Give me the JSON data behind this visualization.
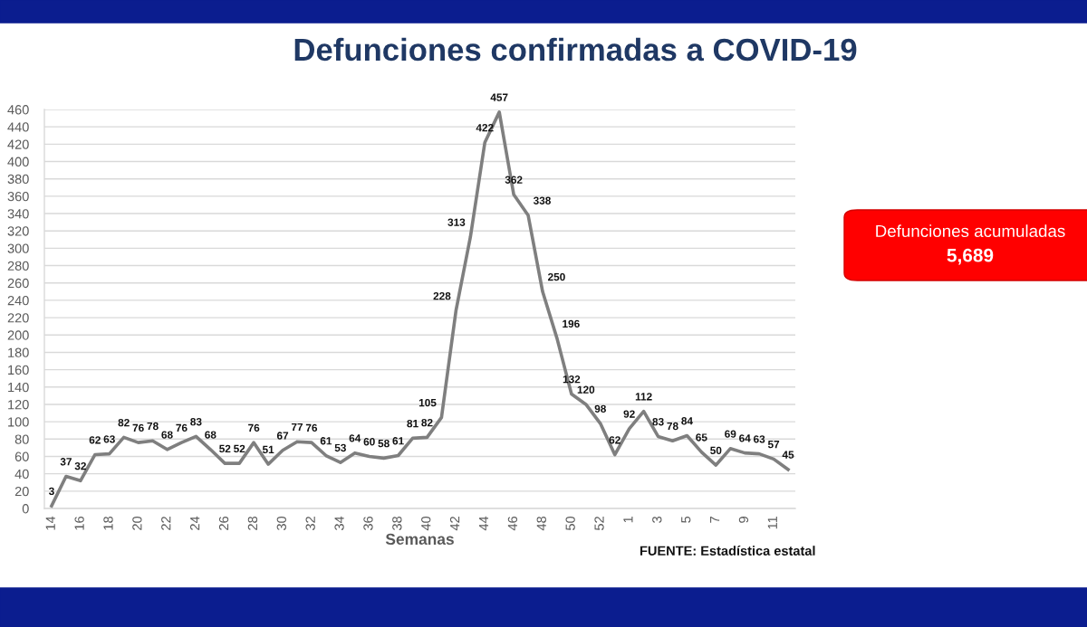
{
  "chart_data": {
    "type": "line",
    "title": "Defunciones confirmadas a COVID-19",
    "xlabel": "Semanas",
    "categories": [
      "14",
      null,
      "16",
      null,
      "18",
      null,
      "20",
      null,
      "22",
      null,
      "24",
      null,
      "26",
      null,
      "28",
      null,
      "30",
      null,
      "32",
      null,
      "34",
      null,
      "36",
      null,
      "38",
      null,
      "40",
      null,
      "42",
      null,
      "44",
      null,
      "46",
      null,
      "48",
      null,
      "50",
      null,
      "52",
      null,
      "1",
      null,
      "3",
      null,
      "5",
      null,
      "7",
      null,
      "9",
      null,
      "11",
      null
    ],
    "series": [
      {
        "color": "#7f7f7f",
        "values": [
          3,
          37,
          32,
          62,
          63,
          82,
          76,
          78,
          68,
          76,
          83,
          68,
          52,
          52,
          76,
          51,
          67,
          77,
          76,
          61,
          53,
          64,
          60,
          58,
          61,
          81,
          82,
          105,
          228,
          313,
          422,
          457,
          362,
          338,
          250,
          196,
          132,
          120,
          98,
          62,
          92,
          112,
          83,
          78,
          84,
          65,
          50,
          69,
          64,
          63,
          57,
          45
        ]
      }
    ],
    "ylim": [
      0,
      460
    ],
    "yticks": [
      0,
      20,
      40,
      60,
      80,
      100,
      120,
      140,
      160,
      180,
      200,
      220,
      240,
      260,
      280,
      300,
      320,
      340,
      360,
      380,
      400,
      420,
      440,
      460
    ],
    "grid": "y",
    "data_labels": true,
    "line_style": "solid",
    "annotations": [
      "Defunciones acumuladas",
      "5,689",
      "FUENTE: Estadística estatal"
    ]
  }
}
